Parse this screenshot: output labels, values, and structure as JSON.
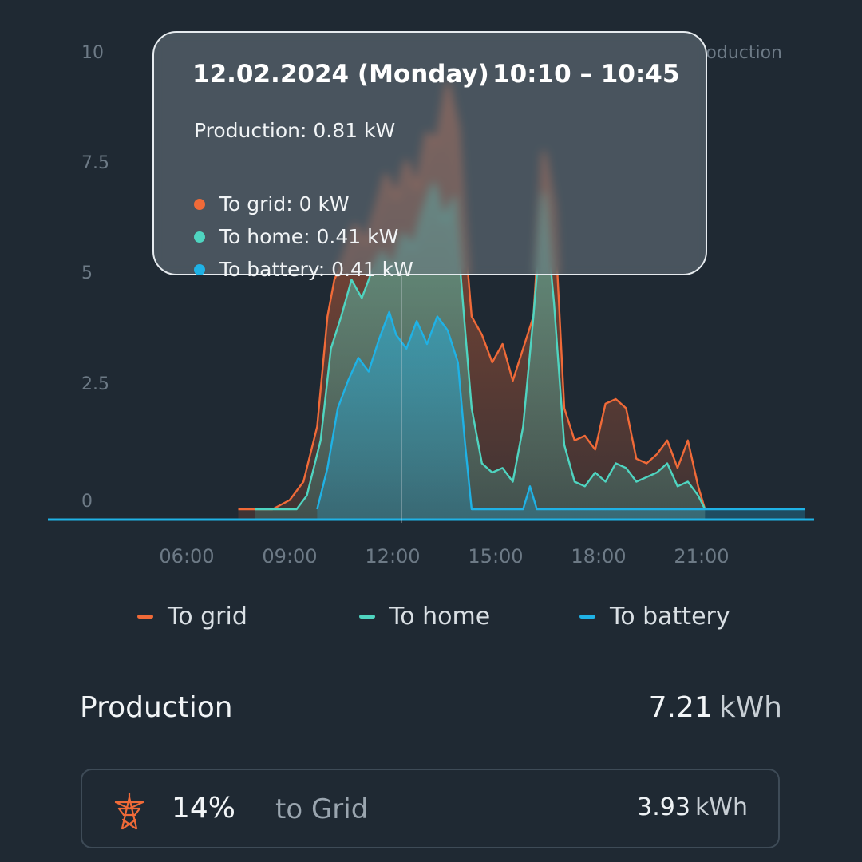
{
  "colors": {
    "background": "#1f2933",
    "to_grid": "#f06a38",
    "to_home": "#4fd4c0",
    "to_battery": "#1fb2e6",
    "axis_text": "#6d7a86"
  },
  "chart_data": {
    "type": "area",
    "x_unit": "hour",
    "xlim": [
      0,
      24
    ],
    "ylim": [
      0,
      10
    ],
    "y_ticks": [
      "10",
      "7.5",
      "5",
      "2.5",
      "0"
    ],
    "x_ticks": [
      {
        "label": "06:00",
        "x": 6
      },
      {
        "label": "09:00",
        "x": 9
      },
      {
        "label": "12:00",
        "x": 12
      },
      {
        "label": "15:00",
        "x": 15
      },
      {
        "label": "18:00",
        "x": 18
      },
      {
        "label": "21:00",
        "x": 21
      }
    ],
    "legend_top_right_partial": "oduction",
    "series": [
      {
        "name": "To grid",
        "color": "#f06a38",
        "points": [
          [
            7.5,
            0
          ],
          [
            8.5,
            0
          ],
          [
            9.0,
            0.2
          ],
          [
            9.4,
            0.6
          ],
          [
            9.8,
            1.8
          ],
          [
            10.1,
            4.2
          ],
          [
            10.3,
            5.0
          ],
          [
            10.6,
            5.5
          ],
          [
            10.9,
            6.2
          ],
          [
            11.2,
            5.8
          ],
          [
            11.5,
            6.5
          ],
          [
            11.8,
            7.3
          ],
          [
            12.1,
            6.8
          ],
          [
            12.4,
            7.6
          ],
          [
            12.7,
            7.0
          ],
          [
            13.0,
            8.2
          ],
          [
            13.3,
            8.0
          ],
          [
            13.6,
            9.3
          ],
          [
            13.9,
            8.3
          ],
          [
            14.1,
            6.0
          ],
          [
            14.3,
            4.2
          ],
          [
            14.6,
            3.8
          ],
          [
            14.9,
            3.2
          ],
          [
            15.2,
            3.6
          ],
          [
            15.5,
            2.8
          ],
          [
            15.8,
            3.5
          ],
          [
            16.1,
            4.2
          ],
          [
            16.4,
            7.8
          ],
          [
            16.7,
            6.6
          ],
          [
            17.0,
            2.2
          ],
          [
            17.3,
            1.5
          ],
          [
            17.6,
            1.6
          ],
          [
            17.9,
            1.3
          ],
          [
            18.2,
            2.3
          ],
          [
            18.5,
            2.4
          ],
          [
            18.8,
            2.2
          ],
          [
            19.1,
            1.1
          ],
          [
            19.4,
            1.0
          ],
          [
            19.7,
            1.2
          ],
          [
            20.0,
            1.5
          ],
          [
            20.3,
            0.9
          ],
          [
            20.6,
            1.5
          ],
          [
            20.9,
            0.5
          ],
          [
            21.1,
            0
          ]
        ]
      },
      {
        "name": "To home",
        "color": "#4fd4c0",
        "points": [
          [
            8.0,
            0
          ],
          [
            9.2,
            0
          ],
          [
            9.5,
            0.3
          ],
          [
            9.9,
            1.5
          ],
          [
            10.2,
            3.5
          ],
          [
            10.5,
            4.2
          ],
          [
            10.8,
            5.0
          ],
          [
            11.1,
            4.6
          ],
          [
            11.4,
            5.2
          ],
          [
            11.7,
            5.6
          ],
          [
            12.0,
            5.2
          ],
          [
            12.3,
            6.0
          ],
          [
            12.6,
            5.7
          ],
          [
            12.9,
            6.5
          ],
          [
            13.2,
            7.1
          ],
          [
            13.5,
            6.3
          ],
          [
            13.8,
            6.8
          ],
          [
            14.1,
            4.0
          ],
          [
            14.3,
            2.2
          ],
          [
            14.6,
            1.0
          ],
          [
            14.9,
            0.8
          ],
          [
            15.2,
            0.9
          ],
          [
            15.5,
            0.6
          ],
          [
            15.8,
            1.8
          ],
          [
            16.1,
            4.2
          ],
          [
            16.4,
            6.9
          ],
          [
            16.7,
            4.5
          ],
          [
            17.0,
            1.4
          ],
          [
            17.3,
            0.6
          ],
          [
            17.6,
            0.5
          ],
          [
            17.9,
            0.8
          ],
          [
            18.2,
            0.6
          ],
          [
            18.5,
            1.0
          ],
          [
            18.8,
            0.9
          ],
          [
            19.1,
            0.6
          ],
          [
            19.4,
            0.7
          ],
          [
            19.7,
            0.8
          ],
          [
            20.0,
            1.0
          ],
          [
            20.3,
            0.5
          ],
          [
            20.6,
            0.6
          ],
          [
            20.9,
            0.3
          ],
          [
            21.1,
            0
          ]
        ]
      },
      {
        "name": "To battery",
        "color": "#1fb2e6",
        "points": [
          [
            9.8,
            0
          ],
          [
            10.1,
            0.9
          ],
          [
            10.4,
            2.2
          ],
          [
            10.7,
            2.8
          ],
          [
            11.0,
            3.3
          ],
          [
            11.3,
            3.0
          ],
          [
            11.6,
            3.7
          ],
          [
            11.9,
            4.3
          ],
          [
            12.1,
            3.8
          ],
          [
            12.4,
            3.5
          ],
          [
            12.7,
            4.1
          ],
          [
            13.0,
            3.6
          ],
          [
            13.3,
            4.2
          ],
          [
            13.6,
            3.9
          ],
          [
            13.9,
            3.2
          ],
          [
            14.1,
            1.5
          ],
          [
            14.3,
            0
          ],
          [
            15.8,
            0
          ],
          [
            16.0,
            0.5
          ],
          [
            16.2,
            0
          ],
          [
            24,
            0
          ]
        ]
      }
    ],
    "cursor_x": 12.25
  },
  "tooltip": {
    "date": "12.02.2024 (Monday)",
    "time_range": "10:10 – 10:45",
    "production": "Production: 0.81 kW",
    "to_grid": "To grid: 0 kW",
    "to_home": "To home: 0.41 kW",
    "to_battery": "To battery: 0.41 kW"
  },
  "legend": {
    "to_grid": "To grid",
    "to_home": "To home",
    "to_battery": "To battery"
  },
  "production": {
    "title": "Production",
    "value": "7.21",
    "unit": "kWh"
  },
  "grid_card": {
    "icon": "power-tower-icon",
    "percent": "14%",
    "label": "to Grid",
    "value": "3.93",
    "unit": "kWh"
  }
}
